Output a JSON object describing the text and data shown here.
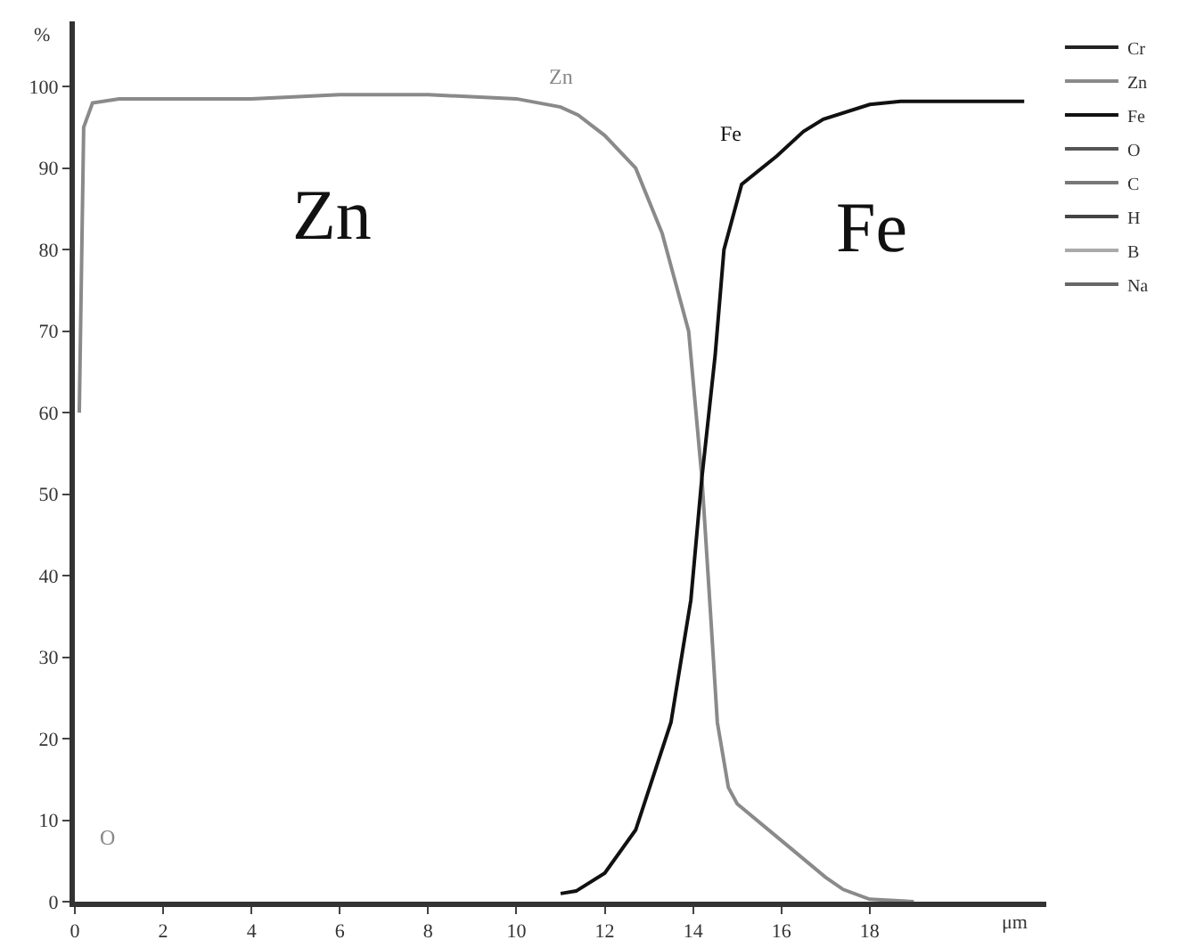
{
  "chart_data": {
    "type": "line",
    "xlabel": "μm",
    "ylabel": "%",
    "xlim": [
      0,
      22
    ],
    "ylim": [
      0,
      108
    ],
    "xticks": [
      0,
      2,
      4,
      6,
      8,
      10,
      12,
      14,
      16,
      18
    ],
    "yticks": [
      0,
      10,
      20,
      30,
      40,
      50,
      60,
      70,
      80,
      90,
      100
    ],
    "grid": false,
    "legend": "top right",
    "marker": "none",
    "line_style": "solid",
    "series": [
      {
        "name": "Cr",
        "color": "#222222"
      },
      {
        "name": "Zn",
        "color": "#8a8a8a",
        "x": [
          0.1,
          0.2,
          0.4,
          1,
          4,
          6,
          8,
          10,
          11,
          11.4,
          12,
          12.7,
          13.3,
          13.9,
          14.2,
          14.4,
          14.55,
          14.8,
          15,
          16,
          17,
          17.4,
          18,
          19
        ],
        "values": [
          60,
          95,
          98,
          98.5,
          98.5,
          99,
          99,
          98.5,
          97.5,
          96.5,
          94,
          90,
          82,
          70,
          52,
          35,
          22,
          14,
          12,
          7.5,
          3,
          1.5,
          0.3,
          0
        ]
      },
      {
        "name": "Fe",
        "color": "#111111",
        "x": [
          11,
          11.35,
          12,
          12.7,
          13.5,
          13.95,
          14.2,
          14.5,
          14.7,
          15.1,
          15.9,
          16.5,
          16.95,
          18,
          18.7,
          21.5
        ],
        "values": [
          1,
          1.3,
          3.5,
          8.8,
          22,
          37,
          52,
          67,
          80,
          88,
          91.5,
          94.5,
          96,
          97.8,
          98.2,
          98.2
        ]
      },
      {
        "name": "O",
        "color": "#555555"
      },
      {
        "name": "C",
        "color": "#777777"
      },
      {
        "name": "H",
        "color": "#444444"
      },
      {
        "name": "B",
        "color": "#aaaaaa"
      },
      {
        "name": "Na",
        "color": "#666666"
      }
    ],
    "annotations": [
      "Zn",
      "Fe",
      "Zn",
      "Fe",
      "O"
    ]
  }
}
